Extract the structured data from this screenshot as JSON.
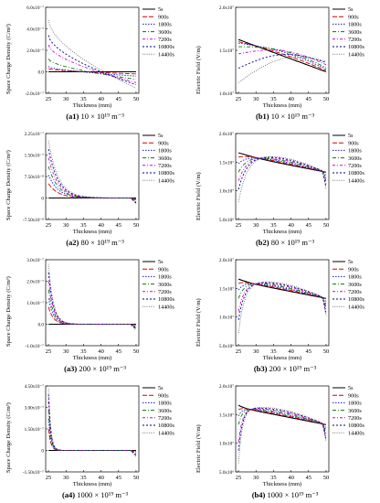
{
  "figure": {
    "panels": [
      {
        "id": "a1",
        "cap_id": "(a1)",
        "cap_rest": "10 × 10¹⁹ m⁻³",
        "kind": "sc",
        "ylabel": "Space Charge Density (C/m³)",
        "xlabel": "Thickness (mm)"
      },
      {
        "id": "b1",
        "cap_id": "(b1)",
        "cap_rest": "10 × 10¹⁹ m⁻³",
        "kind": "ef",
        "ylabel": "Electric Field (V/m)",
        "xlabel": "Thickness (mm)"
      },
      {
        "id": "a2",
        "cap_id": "(a2)",
        "cap_rest": "80 × 10¹⁹ m⁻³",
        "kind": "sc",
        "ylabel": "Space Charge Density (C/m³)",
        "xlabel": "Thickness (mm)"
      },
      {
        "id": "b2",
        "cap_id": "(b2)",
        "cap_rest": "80 × 10¹⁹ m⁻³",
        "kind": "ef",
        "ylabel": "Electric Field (V/m)",
        "xlabel": "Thickness (mm)"
      },
      {
        "id": "a3",
        "cap_id": "(a3)",
        "cap_rest": "200 × 10¹⁹ m⁻³",
        "kind": "sc",
        "ylabel": "Space Charge Density (C/m³)",
        "xlabel": "Thickness (mm)"
      },
      {
        "id": "b3",
        "cap_id": "(b3)",
        "cap_rest": "200 × 10¹⁹ m⁻³",
        "kind": "ef",
        "ylabel": "Electric Field (V/m)",
        "xlabel": "Thickness (mm)"
      },
      {
        "id": "a4",
        "cap_id": "(a4)",
        "cap_rest": "1000 × 10¹⁹ m⁻³",
        "kind": "sc",
        "ylabel": "Space Charge Density (C/m³)",
        "xlabel": "Thickness (mm)"
      },
      {
        "id": "b4",
        "cap_id": "(b4)",
        "cap_rest": "1000 × 10¹⁹ m⁻³",
        "kind": "ef",
        "ylabel": "Electric Field (V/m)",
        "xlabel": "Thickness (mm)"
      }
    ]
  },
  "chart_data": [
    {
      "id": "a1",
      "type": "line",
      "x_ticks": [
        25,
        30,
        35,
        40,
        45,
        50
      ],
      "y_ticks": [
        "-2.0x10⁻⁷",
        "0.0",
        "2.0x10⁻⁷",
        "4.0x10⁻⁷",
        "6.0x10⁻⁷"
      ],
      "ylim": [
        -2e-07,
        6e-07
      ],
      "series": [
        {
          "name": "5s",
          "color": "#000000",
          "y0": 0.0,
          "y1": 0.0
        },
        {
          "name": "900s",
          "color": "#d40000",
          "y0": 3e-08,
          "y1": -2e-08
        },
        {
          "name": "1800s",
          "color": "#1a1adf",
          "y0": 5e-08,
          "y1": -4e-08
        },
        {
          "name": "3600s",
          "color": "#007a00",
          "y0": 1.2e-07,
          "y1": -7e-08
        },
        {
          "name": "7200s",
          "color": "#d400d4",
          "y0": 2.5e-07,
          "y1": -1e-07
        },
        {
          "name": "10800s",
          "color": "#000080",
          "y0": 3.4e-07,
          "y1": -1.2e-07
        },
        {
          "name": "14400s",
          "color": "#555555",
          "y0": 4.8e-07,
          "y1": -1.5e-07
        }
      ]
    },
    {
      "id": "b1",
      "type": "line",
      "x_ticks": [
        25,
        30,
        35,
        40,
        45,
        50
      ],
      "y_ticks": [
        "1.0x10⁷",
        "1.5x10⁷",
        "2.0x10⁷"
      ],
      "ylim": [
        8000000.0,
        20000000.0
      ],
      "series": [
        {
          "name": "5s",
          "color": "#000000",
          "y0": 15500000.0,
          "y1": 11000000.0
        },
        {
          "name": "900s",
          "color": "#d40000",
          "y0": 15200000.0,
          "y1": 11200000.0
        },
        {
          "name": "1800s",
          "color": "#1a1adf",
          "y0": 15000000.0,
          "y1": 11400000.0
        },
        {
          "name": "3600s",
          "color": "#007a00",
          "y0": 14500000.0,
          "y1": 11600000.0
        },
        {
          "name": "7200s",
          "color": "#d400d4",
          "y0": 13500000.0,
          "y1": 12000000.0
        },
        {
          "name": "10800s",
          "color": "#000080",
          "y0": 11500000.0,
          "y1": 12300000.0
        },
        {
          "name": "14400s",
          "color": "#555555",
          "y0": 9500000.0,
          "y1": 12500000.0
        }
      ]
    },
    {
      "id": "a2",
      "type": "line",
      "x_ticks": [
        25,
        30,
        35,
        40,
        45,
        50
      ],
      "y_ticks": [
        "-7.50x10⁻⁸",
        "0",
        "7.50x10⁻⁸",
        "1.50x10⁻⁷",
        "2.25x10⁻⁷"
      ],
      "ylim": [
        -7.5e-08,
        2.25e-07
      ],
      "series": [
        {
          "name": "5s",
          "color": "#000000",
          "peak": 0.0
        },
        {
          "name": "900s",
          "color": "#d40000",
          "peak": 5e-08
        },
        {
          "name": "1800s",
          "color": "#1a1adf",
          "peak": 8e-08
        },
        {
          "name": "3600s",
          "color": "#007a00",
          "peak": 1.1e-07
        },
        {
          "name": "7200s",
          "color": "#d400d4",
          "peak": 1.4e-07
        },
        {
          "name": "10800s",
          "color": "#000080",
          "peak": 1.7e-07
        },
        {
          "name": "14400s",
          "color": "#555555",
          "peak": 2e-07
        }
      ]
    },
    {
      "id": "b2",
      "type": "line",
      "x_ticks": [
        25,
        30,
        35,
        40,
        45,
        50
      ],
      "y_ticks": [
        "5.0x10⁶",
        "1.0x10⁷",
        "1.5x10⁷",
        "2.0x10⁷"
      ],
      "ylim": [
        0,
        20000000.0
      ],
      "series": [
        {
          "name": "5s",
          "color": "#000000",
          "y0": 15500000.0
        },
        {
          "name": "900s",
          "color": "#d40000",
          "y0": 14500000.0
        },
        {
          "name": "1800s",
          "color": "#1a1adf",
          "y0": 13000000.0
        },
        {
          "name": "3600s",
          "color": "#007a00",
          "y0": 11000000.0
        },
        {
          "name": "7200s",
          "color": "#d400d4",
          "y0": 9000000.0
        },
        {
          "name": "10800s",
          "color": "#000080",
          "y0": 7000000.0
        },
        {
          "name": "14400s",
          "color": "#555555",
          "y0": 4000000.0
        }
      ]
    },
    {
      "id": "a3",
      "type": "line",
      "x_ticks": [
        25,
        30,
        35,
        40,
        45,
        50
      ],
      "y_ticks": [
        "-1.0x10⁻⁷",
        "0.0",
        "1.0x10⁻⁷",
        "2.0x10⁻⁷",
        "3.0x10⁻⁷"
      ],
      "ylim": [
        -1e-07,
        3e-07
      ],
      "series": [
        {
          "name": "5s",
          "color": "#000000",
          "peak": 0.0
        },
        {
          "name": "900s",
          "color": "#d40000",
          "peak": 8e-08
        },
        {
          "name": "1800s",
          "color": "#1a1adf",
          "peak": 1.2e-07
        },
        {
          "name": "3600s",
          "color": "#007a00",
          "peak": 1.6e-07
        },
        {
          "name": "7200s",
          "color": "#d400d4",
          "peak": 2e-07
        },
        {
          "name": "10800s",
          "color": "#000080",
          "peak": 2.4e-07
        },
        {
          "name": "14400s",
          "color": "#555555",
          "peak": 2.8e-07
        }
      ]
    },
    {
      "id": "b3",
      "type": "line",
      "x_ticks": [
        25,
        30,
        35,
        40,
        45,
        50
      ],
      "y_ticks": [
        "5.0x10⁶",
        "1.0x10⁷",
        "1.5x10⁷",
        "2.0x10⁷"
      ],
      "ylim": [
        0,
        20000000.0
      ],
      "series": [
        {
          "name": "5s",
          "color": "#000000",
          "y0": 15500000.0
        },
        {
          "name": "900s",
          "color": "#d40000",
          "y0": 14500000.0
        },
        {
          "name": "1800s",
          "color": "#1a1adf",
          "y0": 13000000.0
        },
        {
          "name": "3600s",
          "color": "#007a00",
          "y0": 11000000.0
        },
        {
          "name": "7200s",
          "color": "#d400d4",
          "y0": 8000000.0
        },
        {
          "name": "10800s",
          "color": "#000080",
          "y0": 6000000.0
        },
        {
          "name": "14400s",
          "color": "#555555",
          "y0": 3000000.0
        }
      ]
    },
    {
      "id": "a4",
      "type": "line",
      "x_ticks": [
        25,
        30,
        35,
        40,
        45,
        50
      ],
      "y_ticks": [
        "-1.50x10⁻⁷",
        "0",
        "1.50x10⁻⁷",
        "3.00x10⁻⁷",
        "4.50x10⁻⁷"
      ],
      "ylim": [
        -1.5e-07,
        4.5e-07
      ],
      "series": [
        {
          "name": "5s",
          "color": "#000000",
          "peak": 0.0
        },
        {
          "name": "900s",
          "color": "#d40000",
          "peak": 1.5e-07
        },
        {
          "name": "1800s",
          "color": "#1a1adf",
          "peak": 2.2e-07
        },
        {
          "name": "3600s",
          "color": "#007a00",
          "peak": 2.8e-07
        },
        {
          "name": "7200s",
          "color": "#d400d4",
          "peak": 3.4e-07
        },
        {
          "name": "10800s",
          "color": "#000080",
          "peak": 3.9e-07
        },
        {
          "name": "14400s",
          "color": "#555555",
          "peak": 4.3e-07
        }
      ]
    },
    {
      "id": "b4",
      "type": "line",
      "x_ticks": [
        25,
        30,
        35,
        40,
        45,
        50
      ],
      "y_ticks": [
        "5.0x10⁶",
        "1.0x10⁷",
        "1.5x10⁷",
        "2.0x10⁷"
      ],
      "ylim": [
        0,
        20000000.0
      ],
      "series": [
        {
          "name": "5s",
          "color": "#000000",
          "y0": 15500000.0
        },
        {
          "name": "900s",
          "color": "#d40000",
          "y0": 14500000.0
        },
        {
          "name": "1800s",
          "color": "#1a1adf",
          "y0": 13000000.0
        },
        {
          "name": "3600s",
          "color": "#007a00",
          "y0": 11000000.0
        },
        {
          "name": "7200s",
          "color": "#d400d4",
          "y0": 7000000.0
        },
        {
          "name": "10800s",
          "color": "#000080",
          "y0": 5000000.0
        },
        {
          "name": "14400s",
          "color": "#555555",
          "y0": 2000000.0
        }
      ]
    }
  ]
}
